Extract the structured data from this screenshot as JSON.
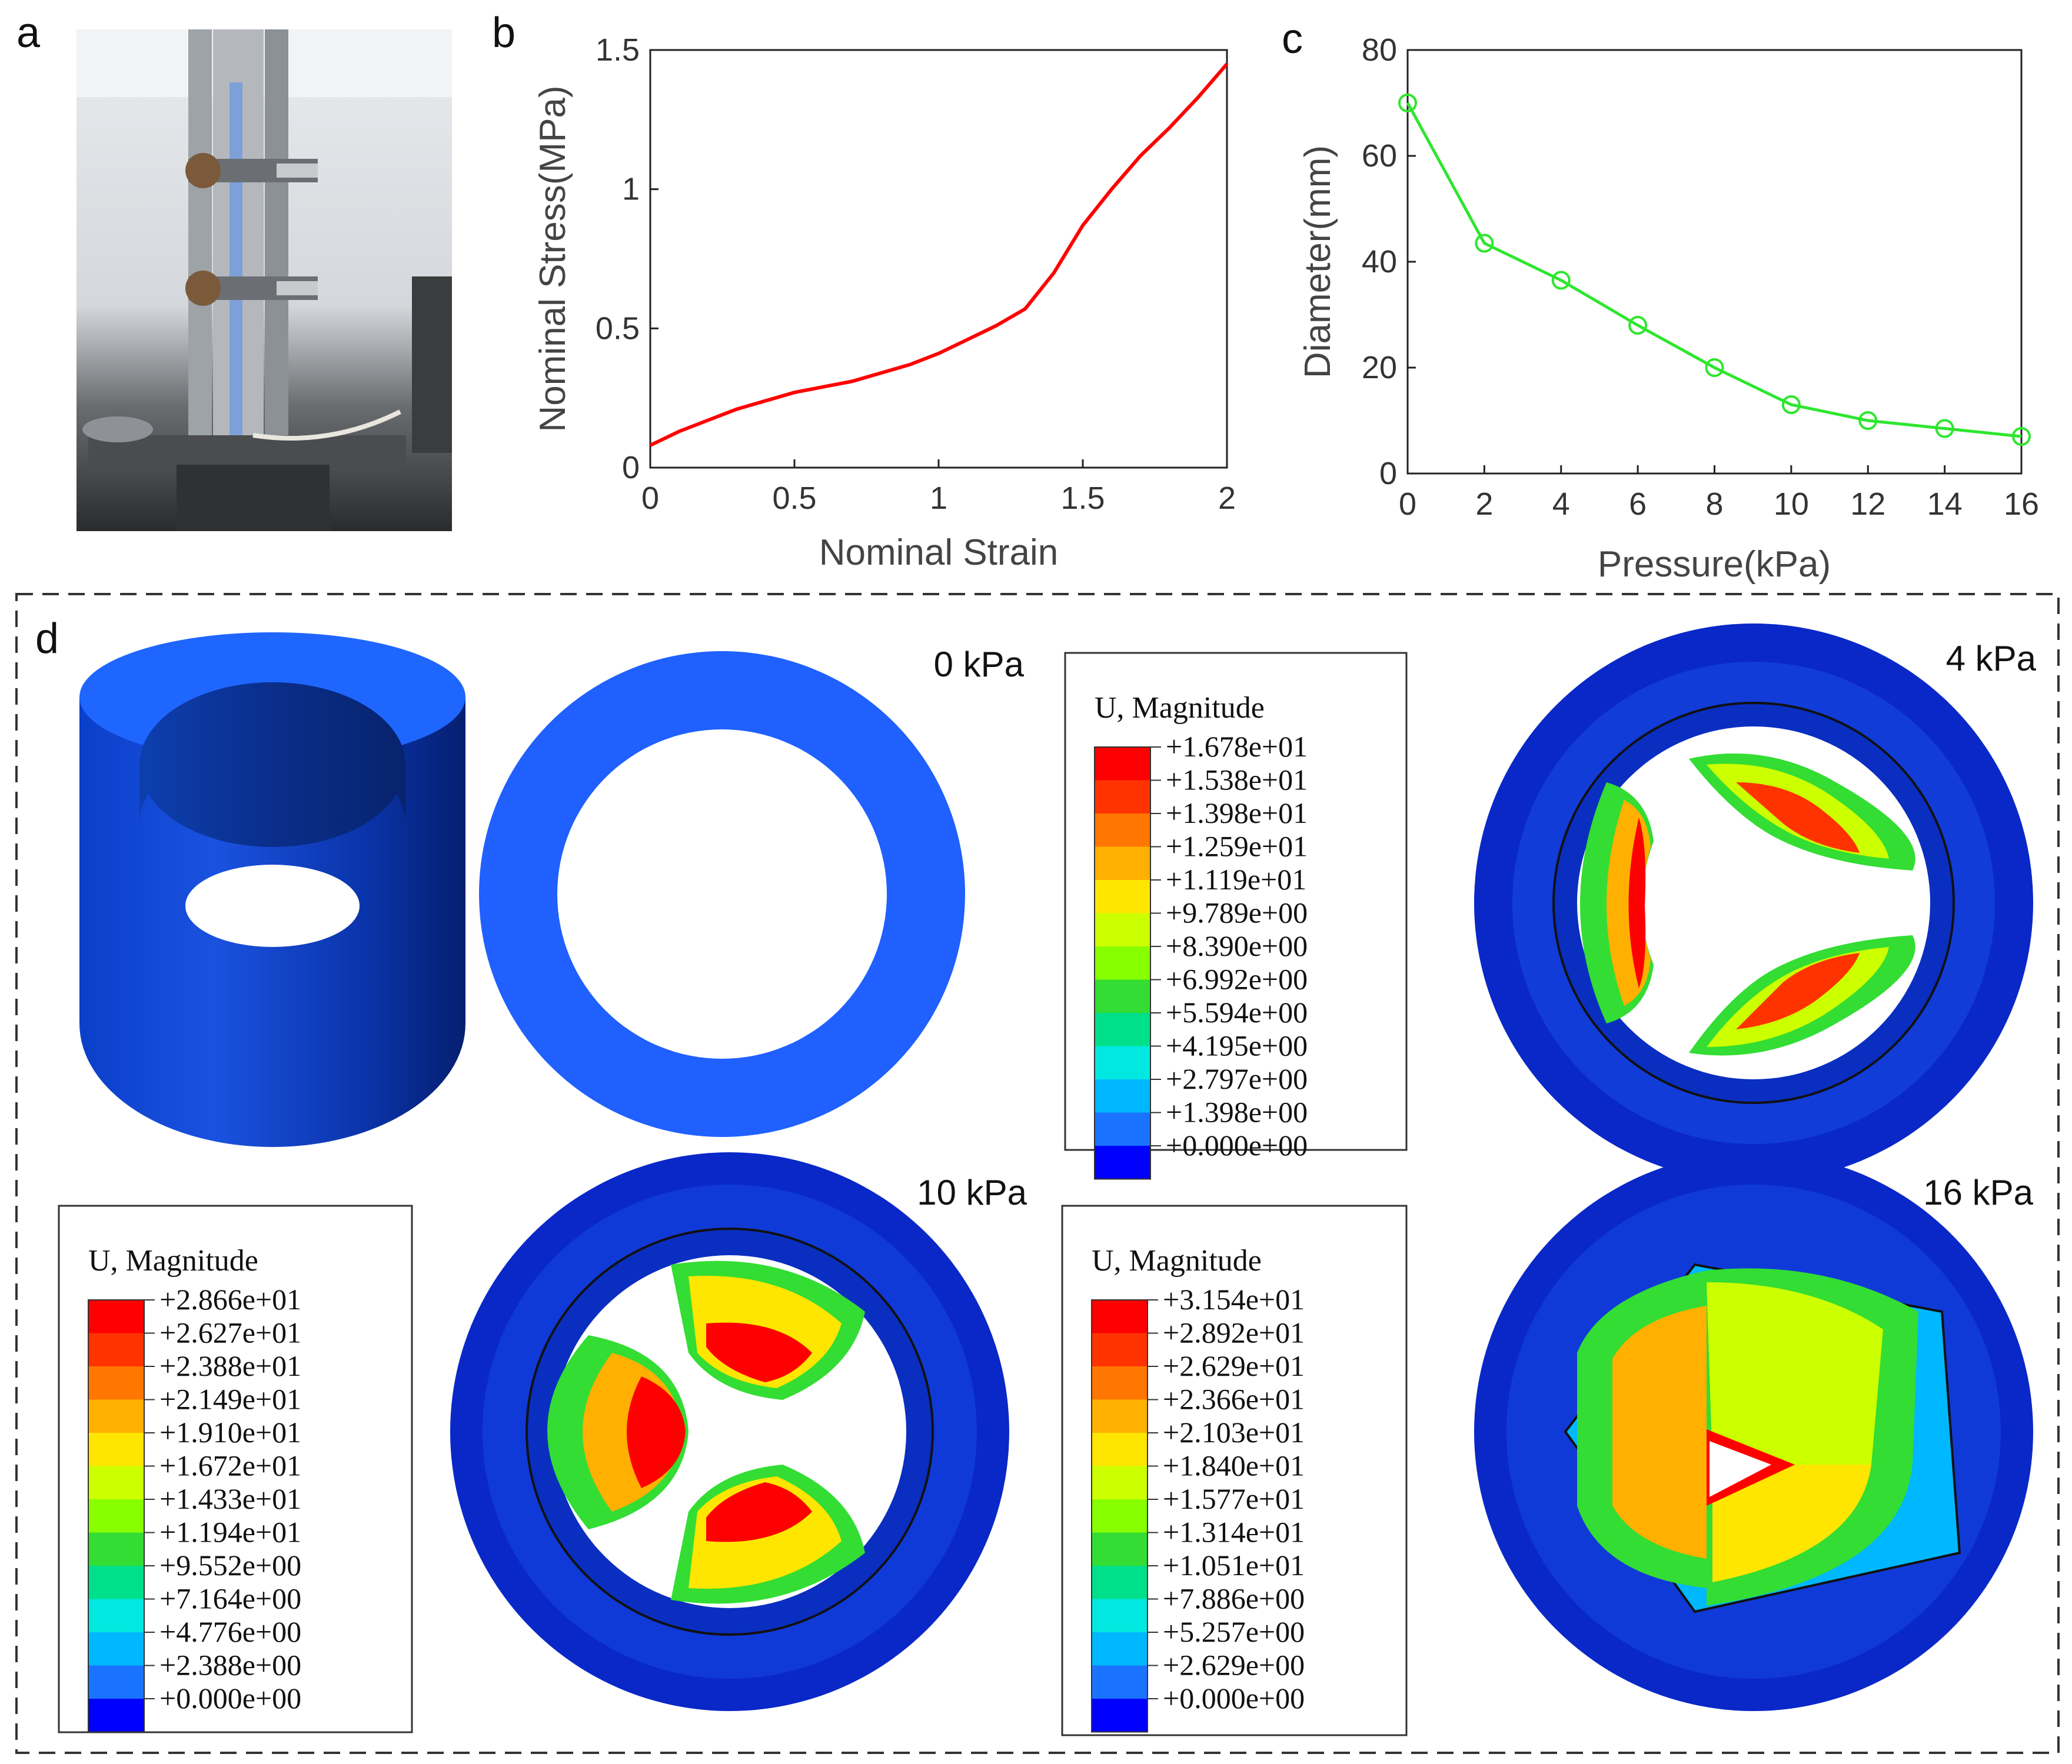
{
  "panels": {
    "a": {
      "label": "a"
    },
    "b": {
      "label": "b"
    },
    "c": {
      "label": "c"
    },
    "d": {
      "label": "d"
    }
  },
  "chart_data": [
    {
      "type": "line",
      "panel": "b",
      "xlabel": "Nominal Strain",
      "ylabel": "Nominal Stress(MPa)",
      "xlim": [
        0,
        2
      ],
      "ylim": [
        0,
        1.5
      ],
      "xticks": [
        "0",
        "0.5",
        "1",
        "1.5",
        "2"
      ],
      "yticks": [
        "0",
        "0.5",
        "1",
        "1.5"
      ],
      "series": [
        {
          "name": "stress-strain",
          "color": "#ff0000",
          "x": [
            0,
            0.1,
            0.2,
            0.3,
            0.4,
            0.5,
            0.6,
            0.7,
            0.8,
            0.9,
            1.0,
            1.1,
            1.2,
            1.3,
            1.4,
            1.5,
            1.6,
            1.7,
            1.8,
            1.9,
            2.0
          ],
          "y": [
            0.08,
            0.13,
            0.17,
            0.21,
            0.24,
            0.27,
            0.29,
            0.31,
            0.34,
            0.37,
            0.41,
            0.46,
            0.51,
            0.57,
            0.7,
            0.87,
            1.0,
            1.12,
            1.22,
            1.33,
            1.45
          ]
        }
      ]
    },
    {
      "type": "line",
      "panel": "c",
      "xlabel": "Pressure(kPa)",
      "ylabel": "Diameter(mm)",
      "xlim": [
        0,
        16
      ],
      "ylim": [
        0,
        80
      ],
      "xticks": [
        "0",
        "2",
        "4",
        "6",
        "8",
        "10",
        "12",
        "14",
        "16"
      ],
      "yticks": [
        "0",
        "20",
        "40",
        "60",
        "80"
      ],
      "series": [
        {
          "name": "diameter",
          "color": "#2ee62e",
          "x": [
            0,
            2,
            4,
            6,
            8,
            10,
            12,
            14,
            16
          ],
          "y": [
            70,
            43.5,
            36.5,
            28,
            20,
            13,
            10,
            8.5,
            7
          ]
        }
      ]
    }
  ],
  "simulation": {
    "pressure_labels": [
      "0 kPa",
      "4 kPa",
      "10 kPa",
      "16 kPa"
    ],
    "legend_colors": [
      "#ff0000",
      "#ff3300",
      "#ff7700",
      "#ffb000",
      "#ffe600",
      "#ccff00",
      "#88ff00",
      "#33dd33",
      "#00e08a",
      "#00e8e0",
      "#00b8ff",
      "#1a73ff",
      "#0000ff"
    ],
    "legends": [
      {
        "title": "U, Magnitude",
        "values": [
          "+1.678e+01",
          "+1.538e+01",
          "+1.398e+01",
          "+1.259e+01",
          "+1.119e+01",
          "+9.789e+00",
          "+8.390e+00",
          "+6.992e+00",
          "+5.594e+00",
          "+4.195e+00",
          "+2.797e+00",
          "+1.398e+00",
          "+0.000e+00"
        ]
      },
      {
        "title": "U, Magnitude",
        "values": [
          "+2.866e+01",
          "+2.627e+01",
          "+2.388e+01",
          "+2.149e+01",
          "+1.910e+01",
          "+1.672e+01",
          "+1.433e+01",
          "+1.194e+01",
          "+9.552e+00",
          "+7.164e+00",
          "+4.776e+00",
          "+2.388e+00",
          "+0.000e+00"
        ]
      },
      {
        "title": "U, Magnitude",
        "values": [
          "+3.154e+01",
          "+2.892e+01",
          "+2.629e+01",
          "+2.366e+01",
          "+2.103e+01",
          "+1.840e+01",
          "+1.577e+01",
          "+1.314e+01",
          "+1.051e+01",
          "+7.886e+00",
          "+5.257e+00",
          "+2.629e+00",
          "+0.000e+00"
        ]
      }
    ]
  }
}
